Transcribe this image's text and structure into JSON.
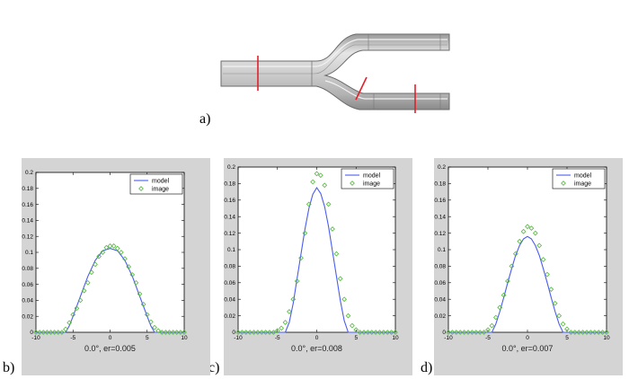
{
  "figure": {
    "panel_labels": [
      "a)",
      "b)",
      "c)",
      "d)"
    ],
    "colors": {
      "model": "#4a5cf0",
      "image": "#52b83a",
      "cut": "#e0202a",
      "plot_bg": "#d4d4d4",
      "pipe": "#c8c8c8"
    }
  },
  "chart_data": [
    {
      "type": "line",
      "panel": "b)",
      "xlabel": "0.0°, er=0.005",
      "xlim": [
        -10,
        10
      ],
      "ylim": [
        0,
        0.2
      ],
      "xticks": [
        "-10",
        "-5",
        "0",
        "5",
        "10"
      ],
      "yticks": [
        "0",
        "0.02",
        "0.04",
        "0.06",
        "0.08",
        "0.1",
        "0.12",
        "0.14",
        "0.16",
        "0.18",
        "0.2"
      ],
      "legend": {
        "position": "top-right",
        "entries": [
          "model",
          "image"
        ]
      },
      "series": [
        {
          "name": "model",
          "style": "line",
          "x": [
            -10,
            -6,
            -5.5,
            -5,
            -4,
            -3,
            -2,
            -1,
            0,
            1,
            2,
            3,
            4,
            5,
            5.5,
            6,
            10
          ],
          "y": [
            0,
            0,
            0.008,
            0.02,
            0.045,
            0.07,
            0.09,
            0.102,
            0.105,
            0.102,
            0.09,
            0.07,
            0.045,
            0.02,
            0.008,
            0,
            0
          ]
        },
        {
          "name": "image",
          "style": "markers",
          "x": [
            -10,
            -9.5,
            -9,
            -8.5,
            -8,
            -7.5,
            -7,
            -6.5,
            -6,
            -5.5,
            -5,
            -4.5,
            -4,
            -3.5,
            -3,
            -2.5,
            -2,
            -1.5,
            -1,
            -0.5,
            0,
            0.5,
            1,
            1.5,
            2,
            2.5,
            3,
            3.5,
            4,
            4.5,
            5,
            5.5,
            6,
            6.5,
            7,
            7.5,
            8,
            8.5,
            9,
            9.5,
            10
          ],
          "y": [
            0,
            0,
            0,
            0,
            0,
            0,
            0,
            0,
            0.004,
            0.012,
            0.022,
            0.03,
            0.04,
            0.052,
            0.062,
            0.075,
            0.085,
            0.095,
            0.1,
            0.106,
            0.108,
            0.108,
            0.105,
            0.1,
            0.092,
            0.082,
            0.072,
            0.062,
            0.048,
            0.035,
            0.022,
            0.013,
            0.006,
            0.002,
            0,
            0,
            0,
            0,
            0,
            0,
            0
          ]
        }
      ]
    },
    {
      "type": "line",
      "panel": "c)",
      "xlabel": "0.0°, er=0.008",
      "xlim": [
        -10,
        10
      ],
      "ylim": [
        0,
        0.2
      ],
      "xticks": [
        "-10",
        "-5",
        "0",
        "5",
        "10"
      ],
      "yticks": [
        "0",
        "0.02",
        "0.04",
        "0.06",
        "0.08",
        "0.1",
        "0.12",
        "0.14",
        "0.16",
        "0.18",
        "0.2"
      ],
      "legend": {
        "position": "top-right",
        "entries": [
          "model",
          "image"
        ]
      },
      "series": [
        {
          "name": "model",
          "style": "line",
          "x": [
            -10,
            -4,
            -3.5,
            -3,
            -2.5,
            -2,
            -1.5,
            -1,
            -0.5,
            0,
            0.5,
            1,
            1.5,
            2,
            2.5,
            3,
            3.5,
            4,
            10
          ],
          "y": [
            0,
            0,
            0.012,
            0.035,
            0.065,
            0.095,
            0.125,
            0.15,
            0.167,
            0.175,
            0.168,
            0.152,
            0.128,
            0.098,
            0.068,
            0.038,
            0.014,
            0,
            0
          ]
        },
        {
          "name": "image",
          "style": "markers",
          "x": [
            -10,
            -9.5,
            -9,
            -8.5,
            -8,
            -7.5,
            -7,
            -6.5,
            -6,
            -5.5,
            -5,
            -4.5,
            -4,
            -3.5,
            -3,
            -2.5,
            -2,
            -1.5,
            -1,
            -0.5,
            0,
            0.5,
            1,
            1.5,
            2,
            2.5,
            3,
            3.5,
            4,
            4.5,
            5,
            5.5,
            6,
            6.5,
            7,
            7.5,
            8,
            8.5,
            9,
            9.5,
            10
          ],
          "y": [
            0,
            0,
            0,
            0,
            0,
            0,
            0,
            0,
            0,
            0,
            0.002,
            0.005,
            0.012,
            0.025,
            0.04,
            0.062,
            0.09,
            0.12,
            0.155,
            0.182,
            0.192,
            0.19,
            0.178,
            0.155,
            0.125,
            0.095,
            0.065,
            0.04,
            0.02,
            0.008,
            0.003,
            0,
            0,
            0,
            0,
            0,
            0,
            0,
            0,
            0,
            0
          ]
        }
      ]
    },
    {
      "type": "line",
      "panel": "d)",
      "xlabel": "0.0°, er=0.007",
      "xlim": [
        -10,
        10
      ],
      "ylim": [
        0,
        0.2
      ],
      "xticks": [
        "-10",
        "-5",
        "0",
        "5",
        "10"
      ],
      "yticks": [
        "0",
        "0.02",
        "0.04",
        "0.06",
        "0.08",
        "0.1",
        "0.12",
        "0.14",
        "0.16",
        "0.18",
        "0.2"
      ],
      "legend": {
        "position": "top-right",
        "entries": [
          "model",
          "image"
        ]
      },
      "series": [
        {
          "name": "model",
          "style": "line",
          "x": [
            -10,
            -4.5,
            -4,
            -3.5,
            -3,
            -2.5,
            -2,
            -1.5,
            -1,
            -0.5,
            0,
            0.5,
            1,
            1.5,
            2,
            2.5,
            3,
            3.5,
            4,
            4.5,
            10
          ],
          "y": [
            0,
            0,
            0.01,
            0.025,
            0.042,
            0.06,
            0.077,
            0.093,
            0.105,
            0.113,
            0.116,
            0.113,
            0.105,
            0.093,
            0.077,
            0.06,
            0.042,
            0.025,
            0.01,
            0,
            0
          ]
        },
        {
          "name": "image",
          "style": "markers",
          "x": [
            -10,
            -9.5,
            -9,
            -8.5,
            -8,
            -7.5,
            -7,
            -6.5,
            -6,
            -5.5,
            -5,
            -4.5,
            -4,
            -3.5,
            -3,
            -2.5,
            -2,
            -1.5,
            -1,
            -0.5,
            0,
            0.5,
            1,
            1.5,
            2,
            2.5,
            3,
            3.5,
            4,
            4.5,
            5,
            5.5,
            6,
            6.5,
            7,
            7.5,
            8,
            8.5,
            9,
            9.5,
            10
          ],
          "y": [
            0,
            0,
            0,
            0,
            0,
            0,
            0,
            0,
            0,
            0,
            0.003,
            0.008,
            0.018,
            0.03,
            0.045,
            0.062,
            0.08,
            0.095,
            0.11,
            0.122,
            0.128,
            0.126,
            0.12,
            0.105,
            0.088,
            0.07,
            0.052,
            0.035,
            0.02,
            0.01,
            0.004,
            0,
            0,
            0,
            0,
            0,
            0,
            0,
            0,
            0,
            0
          ]
        }
      ]
    }
  ]
}
